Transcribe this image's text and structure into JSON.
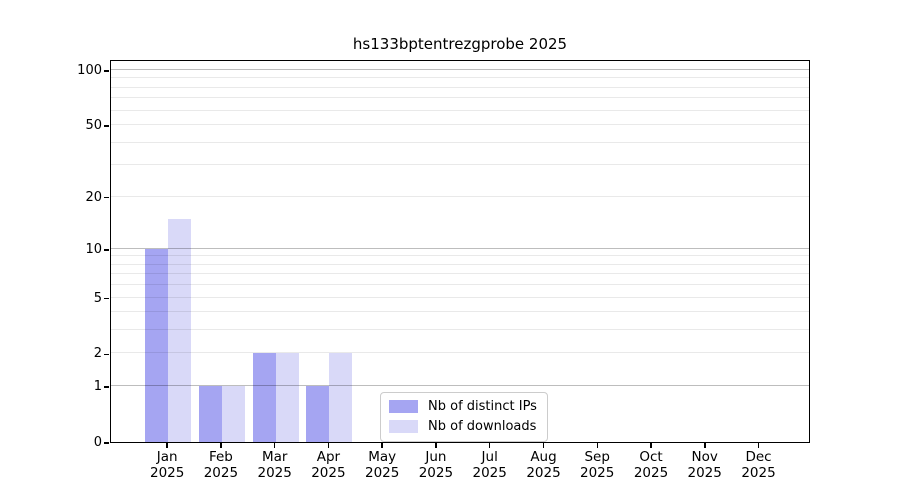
{
  "chart_data": {
    "type": "bar",
    "title": "hs133bptentrezgprobe 2025",
    "year": "2025",
    "categories": [
      "Jan",
      "Feb",
      "Mar",
      "Apr",
      "May",
      "Jun",
      "Jul",
      "Aug",
      "Sep",
      "Oct",
      "Nov",
      "Dec"
    ],
    "series": [
      {
        "name": "Nb of distinct IPs",
        "color": "#a5a5f2",
        "values": [
          10,
          1,
          2,
          1,
          0,
          0,
          0,
          0,
          0,
          0,
          0,
          0
        ]
      },
      {
        "name": "Nb of downloads",
        "color": "#d9d9f8",
        "values": [
          15,
          1,
          2,
          2,
          0,
          0,
          0,
          0,
          0,
          0,
          0,
          0
        ]
      }
    ],
    "xlabel": "",
    "ylabel": "",
    "yscale": "log10(1+x)",
    "ylim": [
      0,
      115
    ],
    "ytick_labels": [
      0,
      1,
      2,
      5,
      10,
      20,
      50,
      100
    ],
    "gridlines": {
      "major": [
        1,
        10,
        100
      ],
      "minor": [
        2,
        3,
        4,
        5,
        6,
        7,
        8,
        9,
        20,
        30,
        40,
        50,
        60,
        70,
        80,
        90
      ]
    },
    "grid": true,
    "legend_position": "lower center"
  },
  "colors": {
    "background": "#ffffff",
    "axis": "#000000",
    "bar_distinct_ips": "#a5a5f2",
    "bar_downloads": "#d9d9f8",
    "legend_border": "#cccccc"
  }
}
